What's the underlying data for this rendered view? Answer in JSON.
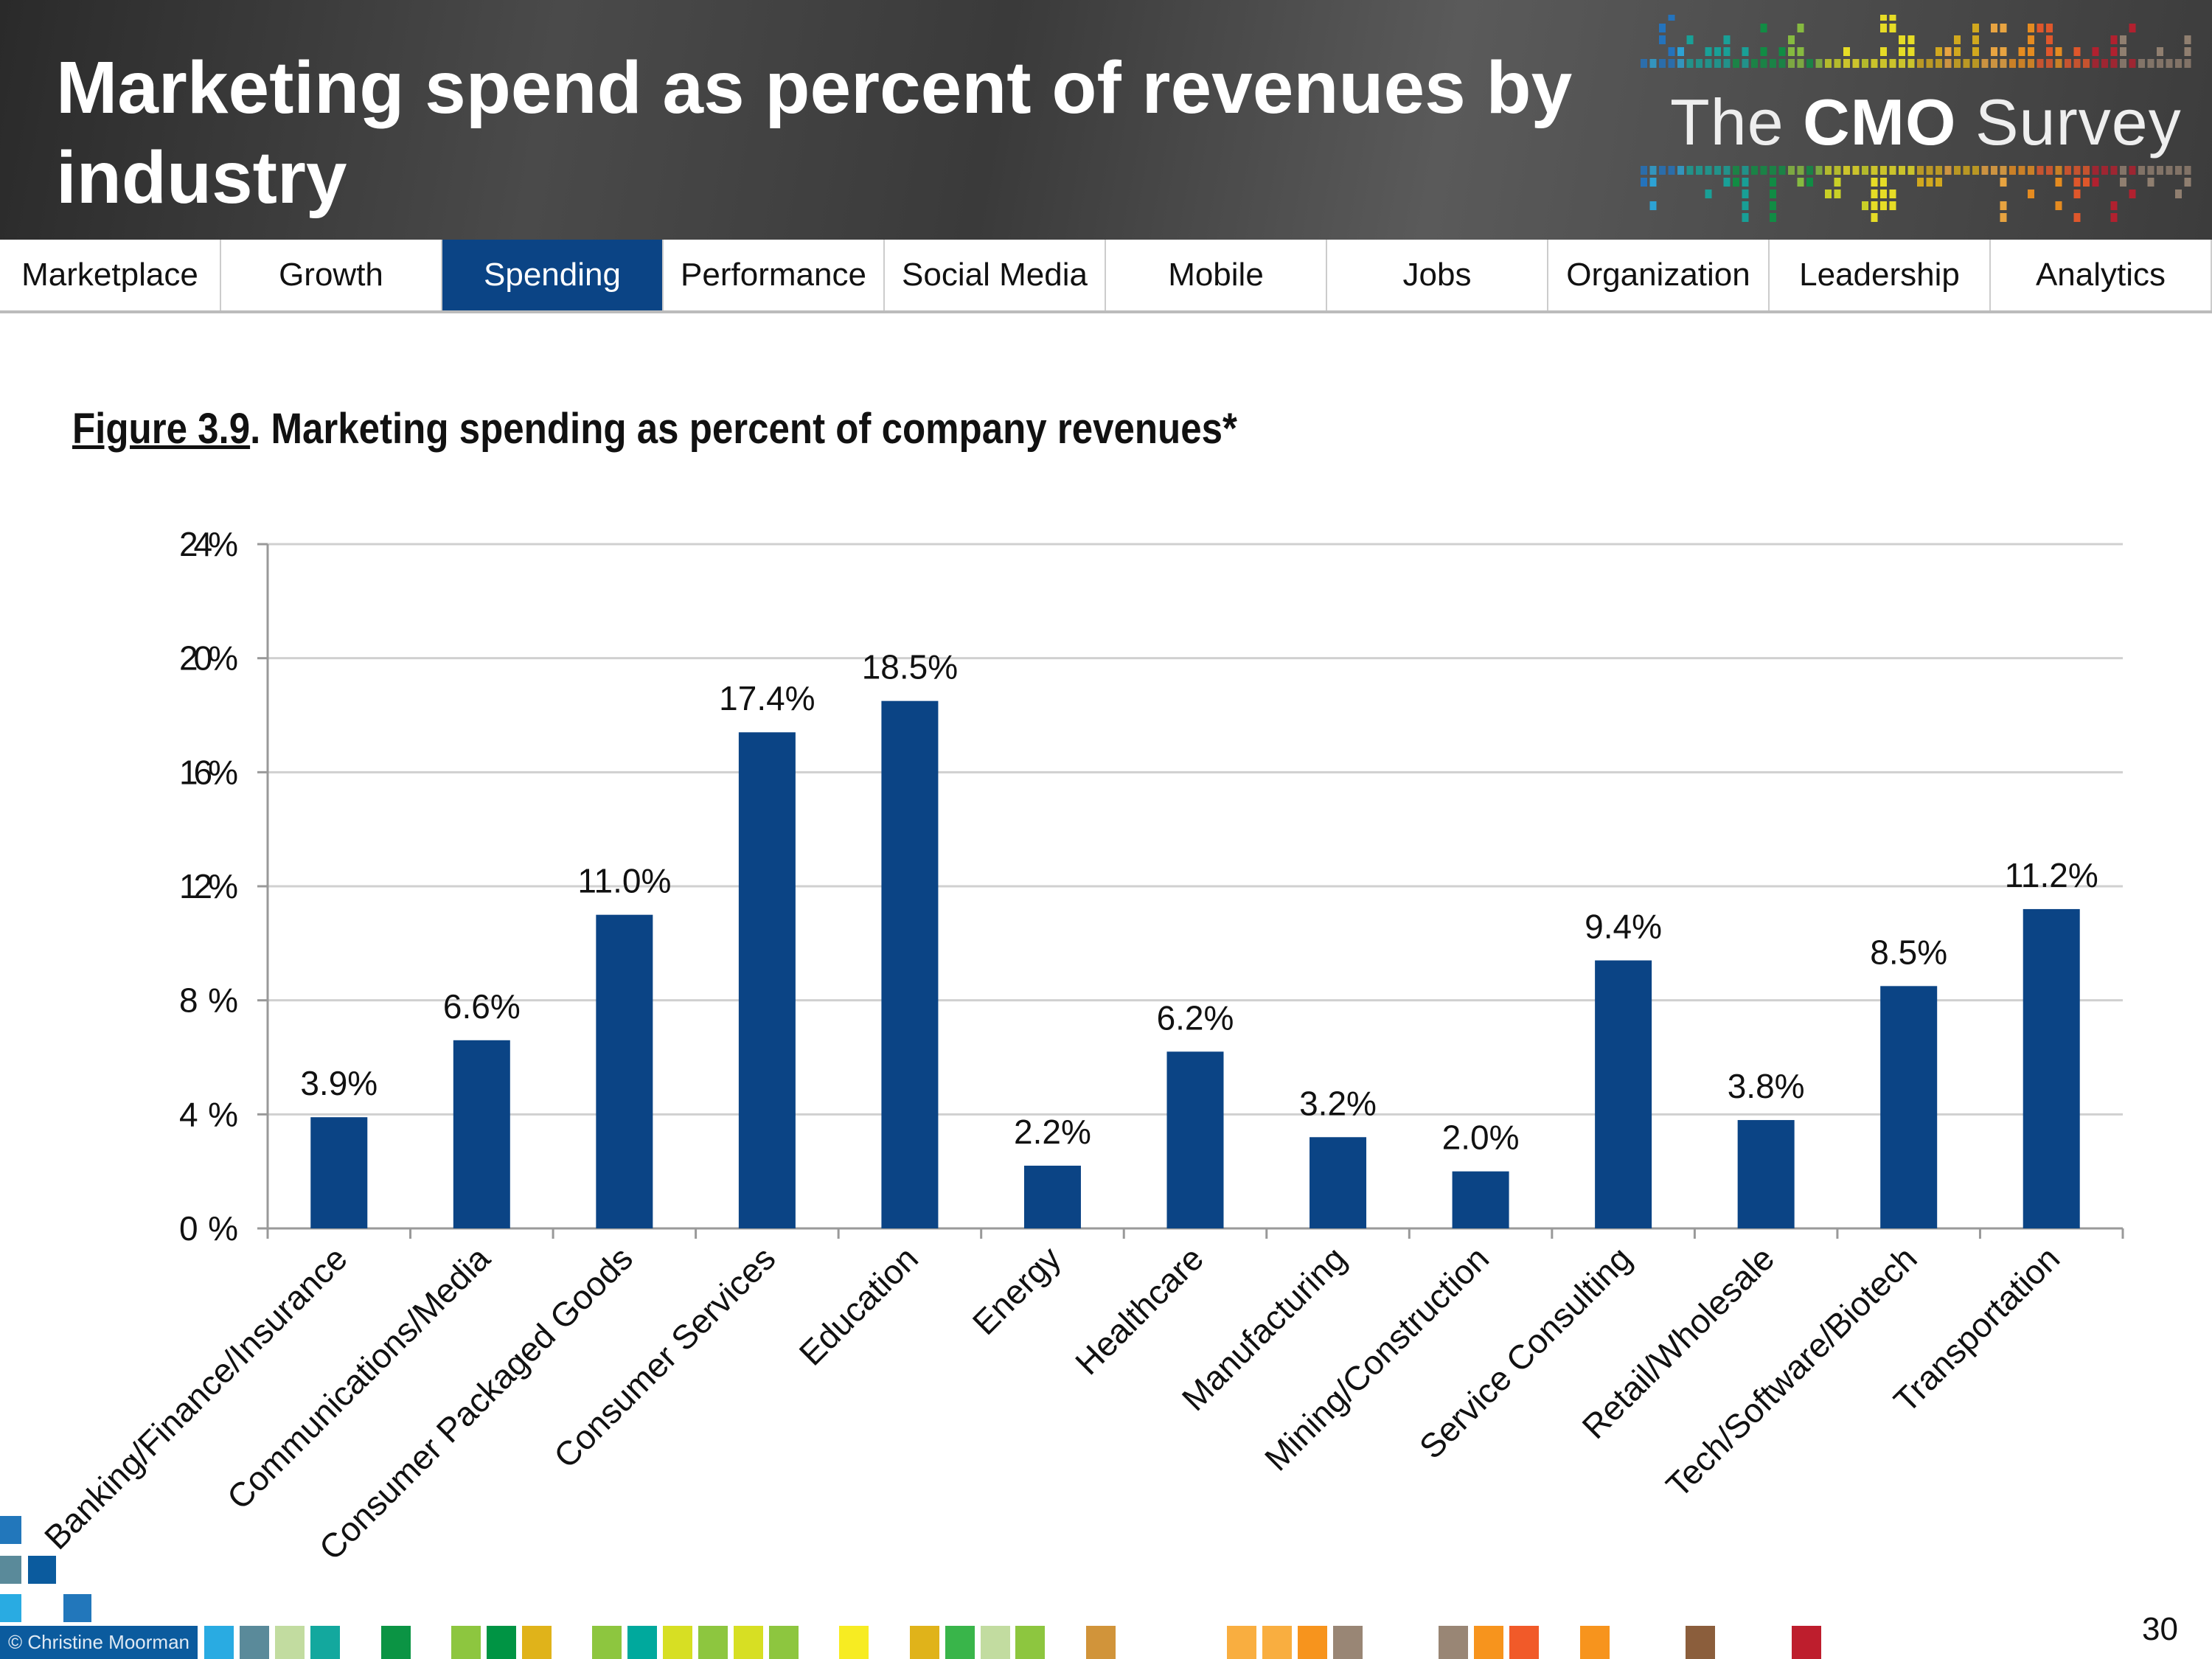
{
  "header": {
    "title": "Marketing spend as percent of revenues by industry",
    "logo": {
      "prefix": "The",
      "bold": "CMO",
      "suffix": "Survey"
    }
  },
  "nav": {
    "tabs": [
      {
        "label": "Marketplace",
        "active": false
      },
      {
        "label": "Growth",
        "active": false
      },
      {
        "label": "Spending",
        "active": true
      },
      {
        "label": "Performance",
        "active": false
      },
      {
        "label": "Social Media",
        "active": false
      },
      {
        "label": "Mobile",
        "active": false
      },
      {
        "label": "Jobs",
        "active": false
      },
      {
        "label": "Organization",
        "active": false
      },
      {
        "label": "Leadership",
        "active": false
      },
      {
        "label": "Analytics",
        "active": false
      }
    ]
  },
  "figure": {
    "label": "Figure 3.9",
    "title": ".  Marketing spending as percent of company revenues*"
  },
  "chart_data": {
    "type": "bar",
    "categories": [
      "Banking/Finance/Insurance",
      "Communications/Media",
      "Consumer Packaged Goods",
      "Consumer Services",
      "Education",
      "Energy",
      "Healthcare",
      "Manufacturing",
      "Mining/Construction",
      "Service Consulting",
      "Retail/Wholesale",
      "Tech/Software/Biotech",
      "Transportation"
    ],
    "values": [
      3.9,
      6.6,
      11.0,
      17.4,
      18.5,
      2.2,
      6.2,
      3.2,
      2.0,
      9.4,
      3.8,
      8.5,
      11.2
    ],
    "data_labels": [
      "3.9%",
      "6.6%",
      "11.0%",
      "17.4%",
      "18.5%",
      "2.2%",
      "6.2%",
      "3.2%",
      "2.0%",
      "9.4%",
      "3.8%",
      "8.5%",
      "11.2%"
    ],
    "yticks": [
      "0%",
      "4%",
      "8%",
      "12%",
      "16%",
      "20%",
      "24%"
    ],
    "ylim": [
      0,
      24
    ],
    "grid": true,
    "bar_color": "#0b4485"
  },
  "footer": {
    "copyright": "© Christine Moorman",
    "page_number": "30",
    "strip_colors": [
      "#29abe2",
      "#5a8a9a",
      "#c2dca0",
      "#13a89e",
      "#0b9444",
      "#8dc63f",
      "#009444",
      "#e0b31a",
      "#8dc63f",
      "#00a99d",
      "#d7df23",
      "#8dc63f",
      "#d7df23",
      "#8dc63f",
      "#f7ec22",
      "#e0b31a",
      "#39b54a",
      "#c2dca0",
      "#8dc63f",
      "#d1943a",
      "#f9ae40",
      "#f9ae40",
      "#f7941d",
      "#998675",
      "#998675",
      "#f7941d",
      "#f15a29",
      "#f7941d",
      "#8b5e3c",
      "#be1e2d"
    ]
  }
}
